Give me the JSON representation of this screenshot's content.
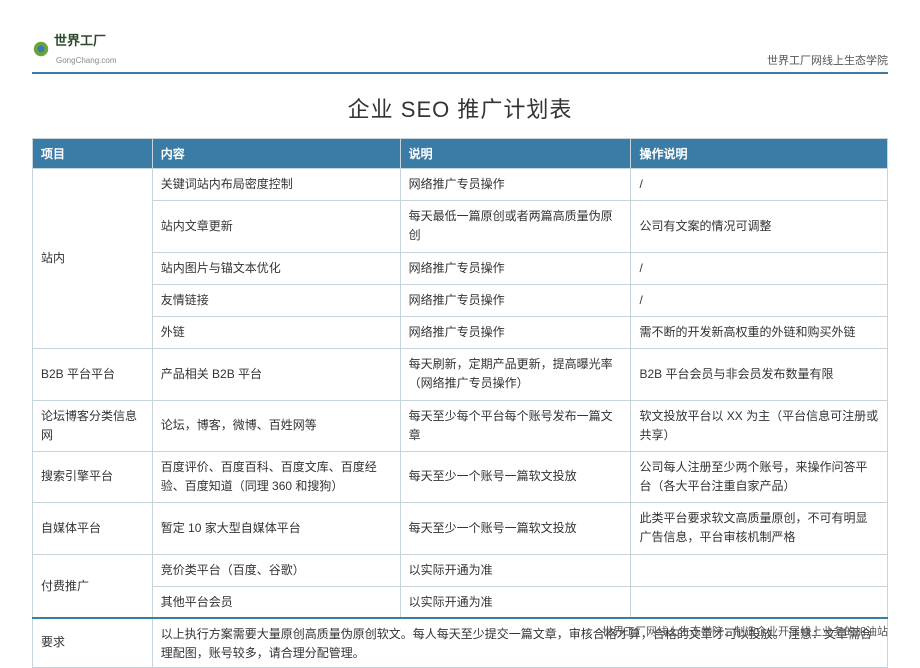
{
  "header": {
    "logo_cn": "世界工厂",
    "logo_en": "GongChang.com",
    "top_right": "世界工厂网线上生态学院"
  },
  "title": "企业 SEO 推广计划表",
  "columns": [
    "项目",
    "内容",
    "说明",
    "操作说明"
  ],
  "column_widths_pct": [
    14,
    29,
    27,
    30
  ],
  "header_bg": "#3a7ca5",
  "header_fg": "#ffffff",
  "border_color": "#c8d4dc",
  "text_color": "#333333",
  "font_size_body": 12,
  "font_size_title": 22,
  "rows": [
    {
      "project": "站内",
      "rowspan": 5,
      "content": "关键词站内布局密度控制",
      "desc": "网络推广专员操作",
      "op": "/"
    },
    {
      "content": "站内文章更新",
      "desc": "每天最低一篇原创或者两篇高质量伪原创",
      "op": "公司有文案的情况可调整"
    },
    {
      "content": "站内图片与锚文本优化",
      "desc": "网络推广专员操作",
      "op": "/"
    },
    {
      "content": "友情链接",
      "desc": "网络推广专员操作",
      "op": "/"
    },
    {
      "content": "外链",
      "desc": "网络推广专员操作",
      "op": "需不断的开发新高权重的外链和购买外链"
    },
    {
      "project": "B2B 平台平台",
      "rowspan": 1,
      "content": "产品相关 B2B 平台",
      "desc": "每天刷新，定期产品更新，提高曝光率（网络推广专员操作）",
      "op": "B2B 平台会员与非会员发布数量有限"
    },
    {
      "project": "论坛博客分类信息网",
      "rowspan": 1,
      "content": "论坛，博客，微博、百姓网等",
      "desc": "每天至少每个平台每个账号发布一篇文章",
      "op": "软文投放平台以 XX 为主（平台信息可注册或共享）"
    },
    {
      "project": "搜索引擎平台",
      "rowspan": 1,
      "content": "百度评价、百度百科、百度文库、百度经验、百度知道（同理 360 和搜狗）",
      "desc": "每天至少一个账号一篇软文投放",
      "op": "公司每人注册至少两个账号，来操作问答平台（各大平台注重自家产品）"
    },
    {
      "project": "自媒体平台",
      "rowspan": 1,
      "content": "暂定 10 家大型自媒体平台",
      "desc": "每天至少一个账号一篇软文投放",
      "op": "此类平台要求软文高质量原创，不可有明显广告信息，平台审核机制严格"
    },
    {
      "project": "付费推广",
      "rowspan": 2,
      "content": "竞价类平台（百度、谷歌）",
      "desc": "以实际开通为准",
      "op": ""
    },
    {
      "content": "其他平台会员",
      "desc": "以实际开通为准",
      "op": ""
    },
    {
      "project": "要求",
      "rowspan": 1,
      "colspan": 3,
      "content_full": "以上执行方案需要大量原创高质量伪原创软文。每人每天至少提交一篇文章，审核合格才算，合格的文章才可以投放。\n注意：文章需合理配图，账号较多，请合理分配管理。"
    }
  ],
  "footer": "世界工厂网线上生态学院：制造企业开展线上业务的加油站"
}
